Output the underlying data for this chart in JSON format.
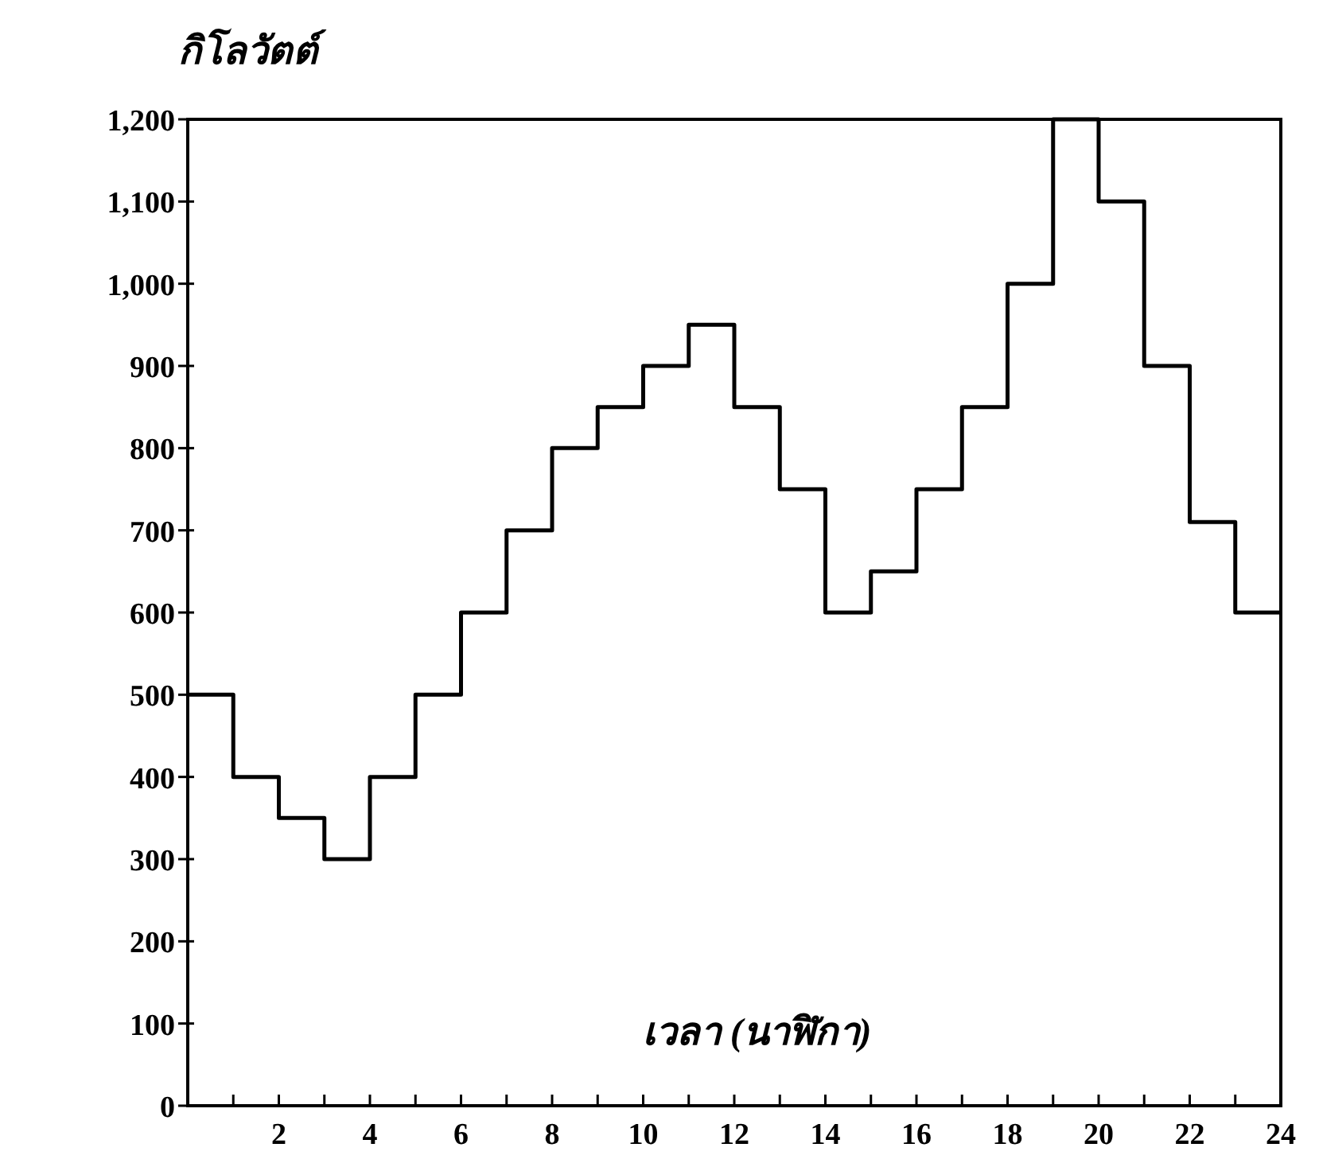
{
  "chart_data": {
    "type": "step",
    "xlabel": "เวลา (นาฬิกา)",
    "ylabel": "กิโลวัตต์",
    "x": [
      0,
      1,
      2,
      3,
      4,
      5,
      6,
      7,
      8,
      9,
      10,
      11,
      12,
      13,
      14,
      15,
      16,
      17,
      18,
      19,
      20,
      21,
      22,
      23,
      24
    ],
    "values": [
      500,
      400,
      350,
      300,
      400,
      500,
      600,
      700,
      800,
      850,
      900,
      950,
      850,
      750,
      600,
      650,
      750,
      850,
      1000,
      1200,
      1100,
      900,
      710,
      600,
      600
    ],
    "color": "#000000",
    "grid": false,
    "marker": "none",
    "line_style": "solid",
    "xlim": [
      0,
      24
    ],
    "ylim": [
      0,
      1200
    ],
    "xticks": [
      {
        "value": 1,
        "label": null
      },
      2,
      {
        "value": 3,
        "label": null
      },
      4,
      {
        "value": 5,
        "label": null
      },
      6,
      {
        "value": 7,
        "label": null
      },
      8,
      {
        "value": 9,
        "label": null
      },
      10,
      {
        "value": 11,
        "label": null
      },
      12,
      {
        "value": 13,
        "label": null
      },
      14,
      {
        "value": 15,
        "label": null
      },
      16,
      {
        "value": 17,
        "label": null
      },
      18,
      {
        "value": 19,
        "label": null
      },
      20,
      {
        "value": 21,
        "label": null
      },
      22,
      {
        "value": 23,
        "label": null
      },
      24
    ],
    "yticks": [
      0,
      100,
      200,
      300,
      400,
      500,
      600,
      700,
      800,
      900,
      {
        "value": 1000,
        "label": "1,000"
      },
      {
        "value": 1100,
        "label": "1,100"
      },
      {
        "value": 1200,
        "label": "1,200"
      }
    ]
  }
}
